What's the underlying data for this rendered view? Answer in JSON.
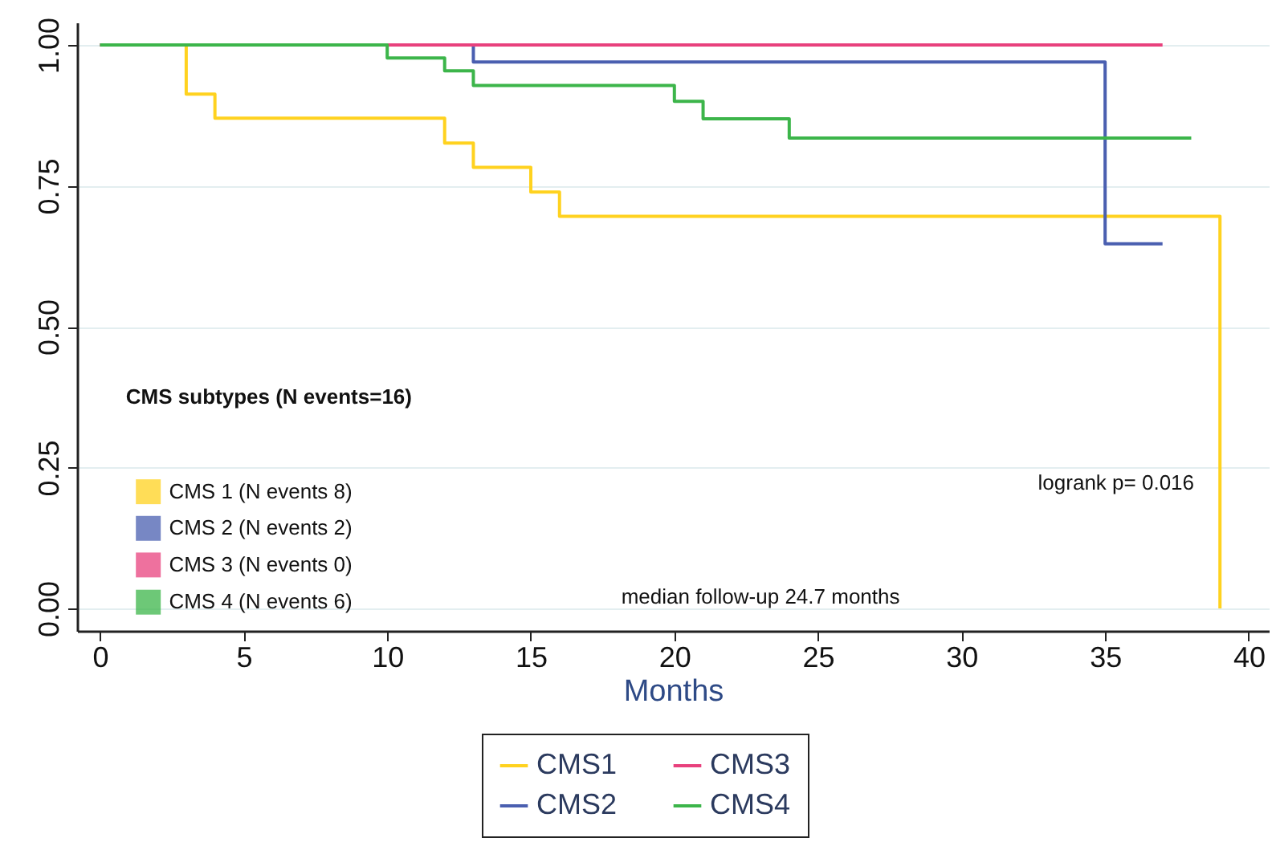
{
  "chart_data": {
    "type": "step",
    "xlabel": "Months",
    "xlim": [
      -0.8,
      40.7
    ],
    "xticks": [
      0,
      5,
      10,
      15,
      20,
      25,
      30,
      35,
      40
    ],
    "ylim": [
      -0.04,
      1.04
    ],
    "yticks": [
      {
        "value": 0,
        "label": "0.00"
      },
      {
        "value": 0.25,
        "label": "0.25"
      },
      {
        "value": 0.5,
        "label": "0.50"
      },
      {
        "value": 0.75,
        "label": "0.75"
      },
      {
        "value": 1,
        "label": "1.00"
      }
    ],
    "grid": "y",
    "legend": "bottom",
    "series": [
      {
        "name": "CMS1",
        "color": "#ffd21f",
        "x": [
          0,
          3,
          4,
          12,
          13,
          15,
          16,
          39
        ],
        "values": [
          1,
          0.913,
          0.87,
          0.826,
          0.783,
          0.739,
          0.696,
          0
        ]
      },
      {
        "name": "CMS2",
        "color": "#4a5fb0",
        "x": [
          0,
          13,
          35,
          37
        ],
        "values": [
          1,
          0.97,
          0.647,
          0.647
        ]
      },
      {
        "name": "CMS3",
        "color": "#e8417d",
        "x": [
          0,
          37
        ],
        "values": [
          1,
          1
        ]
      },
      {
        "name": "CMS4",
        "color": "#3cb54a",
        "x": [
          0,
          10,
          12,
          13,
          20,
          21,
          24,
          38
        ],
        "values": [
          1,
          0.977,
          0.954,
          0.928,
          0.9,
          0.869,
          0.835,
          0.835
        ]
      }
    ],
    "annotations": [
      "CMS subtypes (N events=16)",
      "CMS 1 (N events 8)",
      "CMS 2 (N events 2)",
      "CMS 3 (N events 0)",
      "CMS 4 (N events 6)",
      "logrank p= 0.016",
      "median follow-up 24.7 months"
    ]
  }
}
